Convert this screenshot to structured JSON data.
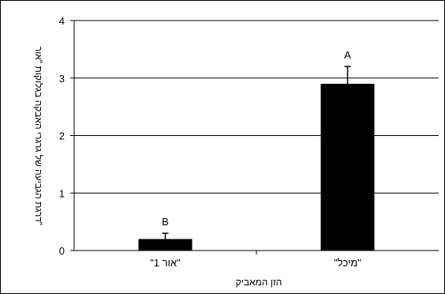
{
  "chart_data": {
    "type": "bar",
    "categories": [
      "\"אור 1\"",
      "\"מיכל\""
    ],
    "values": [
      0.2,
      2.9
    ],
    "errors": [
      0.1,
      0.3
    ],
    "significance_letters": [
      "B",
      "A"
    ],
    "xlabel": "הזן המאביק",
    "ylabel": "דרגת הגביעה של גרגרי האבקה בגלוקות \"אור\"",
    "ylim": [
      0,
      4
    ],
    "yticks": [
      0,
      1,
      2,
      3,
      4
    ],
    "grid": true,
    "legend": "none",
    "colors": {
      "bar": "#000000",
      "grid": "#000000",
      "background": "#ffffff"
    }
  }
}
